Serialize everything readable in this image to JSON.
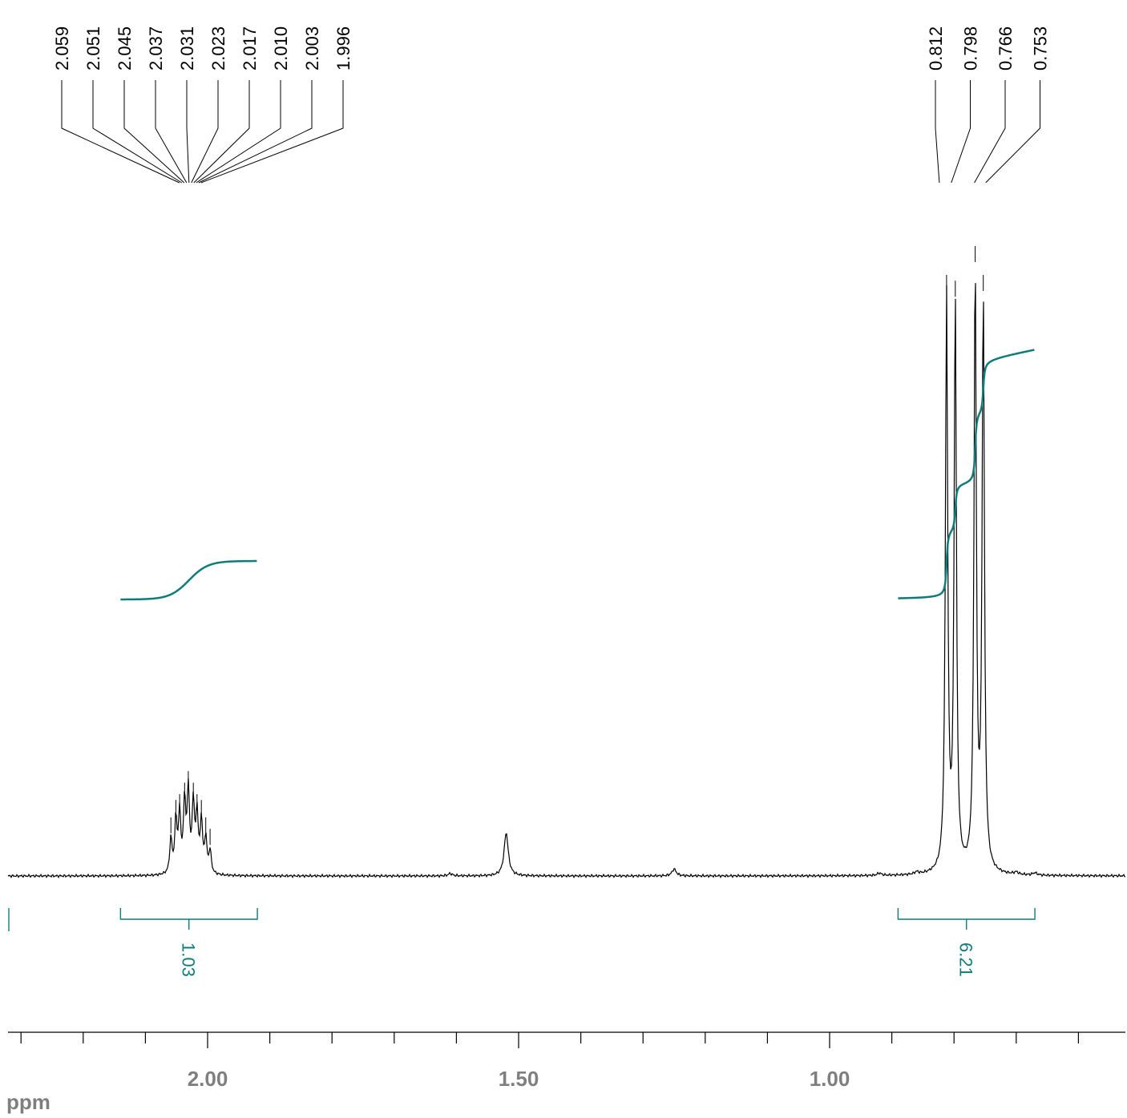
{
  "chart_data": {
    "type": "line",
    "title": "",
    "xlabel": "ppm",
    "ylabel": "",
    "x_reversed": true,
    "xlim": [
      2.3,
      0.53
    ],
    "major_ticks": [
      {
        "value": 2.0,
        "label": "2.00"
      },
      {
        "value": 1.5,
        "label": "1.50"
      },
      {
        "value": 1.0,
        "label": "1.00"
      }
    ],
    "minor_tick_step": 0.1,
    "grid": false,
    "colors": {
      "spectrum": "#000000",
      "integral": "#0e7c7b",
      "axis": "#000000",
      "tick_label": "#7f7f7f"
    },
    "peak_groups": [
      {
        "anchor_ppm": 2.028,
        "peaks": [
          {
            "ppm": 2.059,
            "label": "2.059",
            "height": 0.06
          },
          {
            "ppm": 2.051,
            "label": "2.051",
            "height": 0.09
          },
          {
            "ppm": 2.045,
            "label": "2.045",
            "height": 0.1
          },
          {
            "ppm": 2.037,
            "label": "2.037",
            "height": 0.12
          },
          {
            "ppm": 2.031,
            "label": "2.031",
            "height": 0.14
          },
          {
            "ppm": 2.023,
            "label": "2.023",
            "height": 0.12
          },
          {
            "ppm": 2.017,
            "label": "2.017",
            "height": 0.1
          },
          {
            "ppm": 2.01,
            "label": "2.010",
            "height": 0.09
          },
          {
            "ppm": 2.003,
            "label": "2.003",
            "height": 0.06
          },
          {
            "ppm": 1.996,
            "label": "1.996",
            "height": 0.04
          }
        ]
      },
      {
        "anchor_ppm": 0.783,
        "peaks": [
          {
            "ppm": 0.812,
            "label": "0.812",
            "height": 1.0
          },
          {
            "ppm": 0.798,
            "label": "0.798",
            "height": 0.99
          },
          {
            "ppm": 0.766,
            "label": "0.766",
            "height": 1.05
          },
          {
            "ppm": 0.753,
            "label": "0.753",
            "height": 1.0
          }
        ]
      }
    ],
    "unlabeled_peaks": [
      {
        "ppm": 1.52,
        "height": 0.075
      },
      {
        "ppm": 1.25,
        "height": 0.012
      },
      {
        "ppm": 1.61,
        "height": 0.004
      },
      {
        "ppm": 0.92,
        "height": 0.004
      },
      {
        "ppm": 0.86,
        "height": 0.004
      },
      {
        "ppm": 0.7,
        "height": 0.004
      },
      {
        "ppm": 0.67,
        "height": 0.004
      }
    ],
    "integrals": [
      {
        "from_ppm": 2.14,
        "to_ppm": 1.92,
        "value": "1.03"
      },
      {
        "from_ppm": 0.89,
        "to_ppm": 0.67,
        "value": "6.21"
      }
    ]
  }
}
